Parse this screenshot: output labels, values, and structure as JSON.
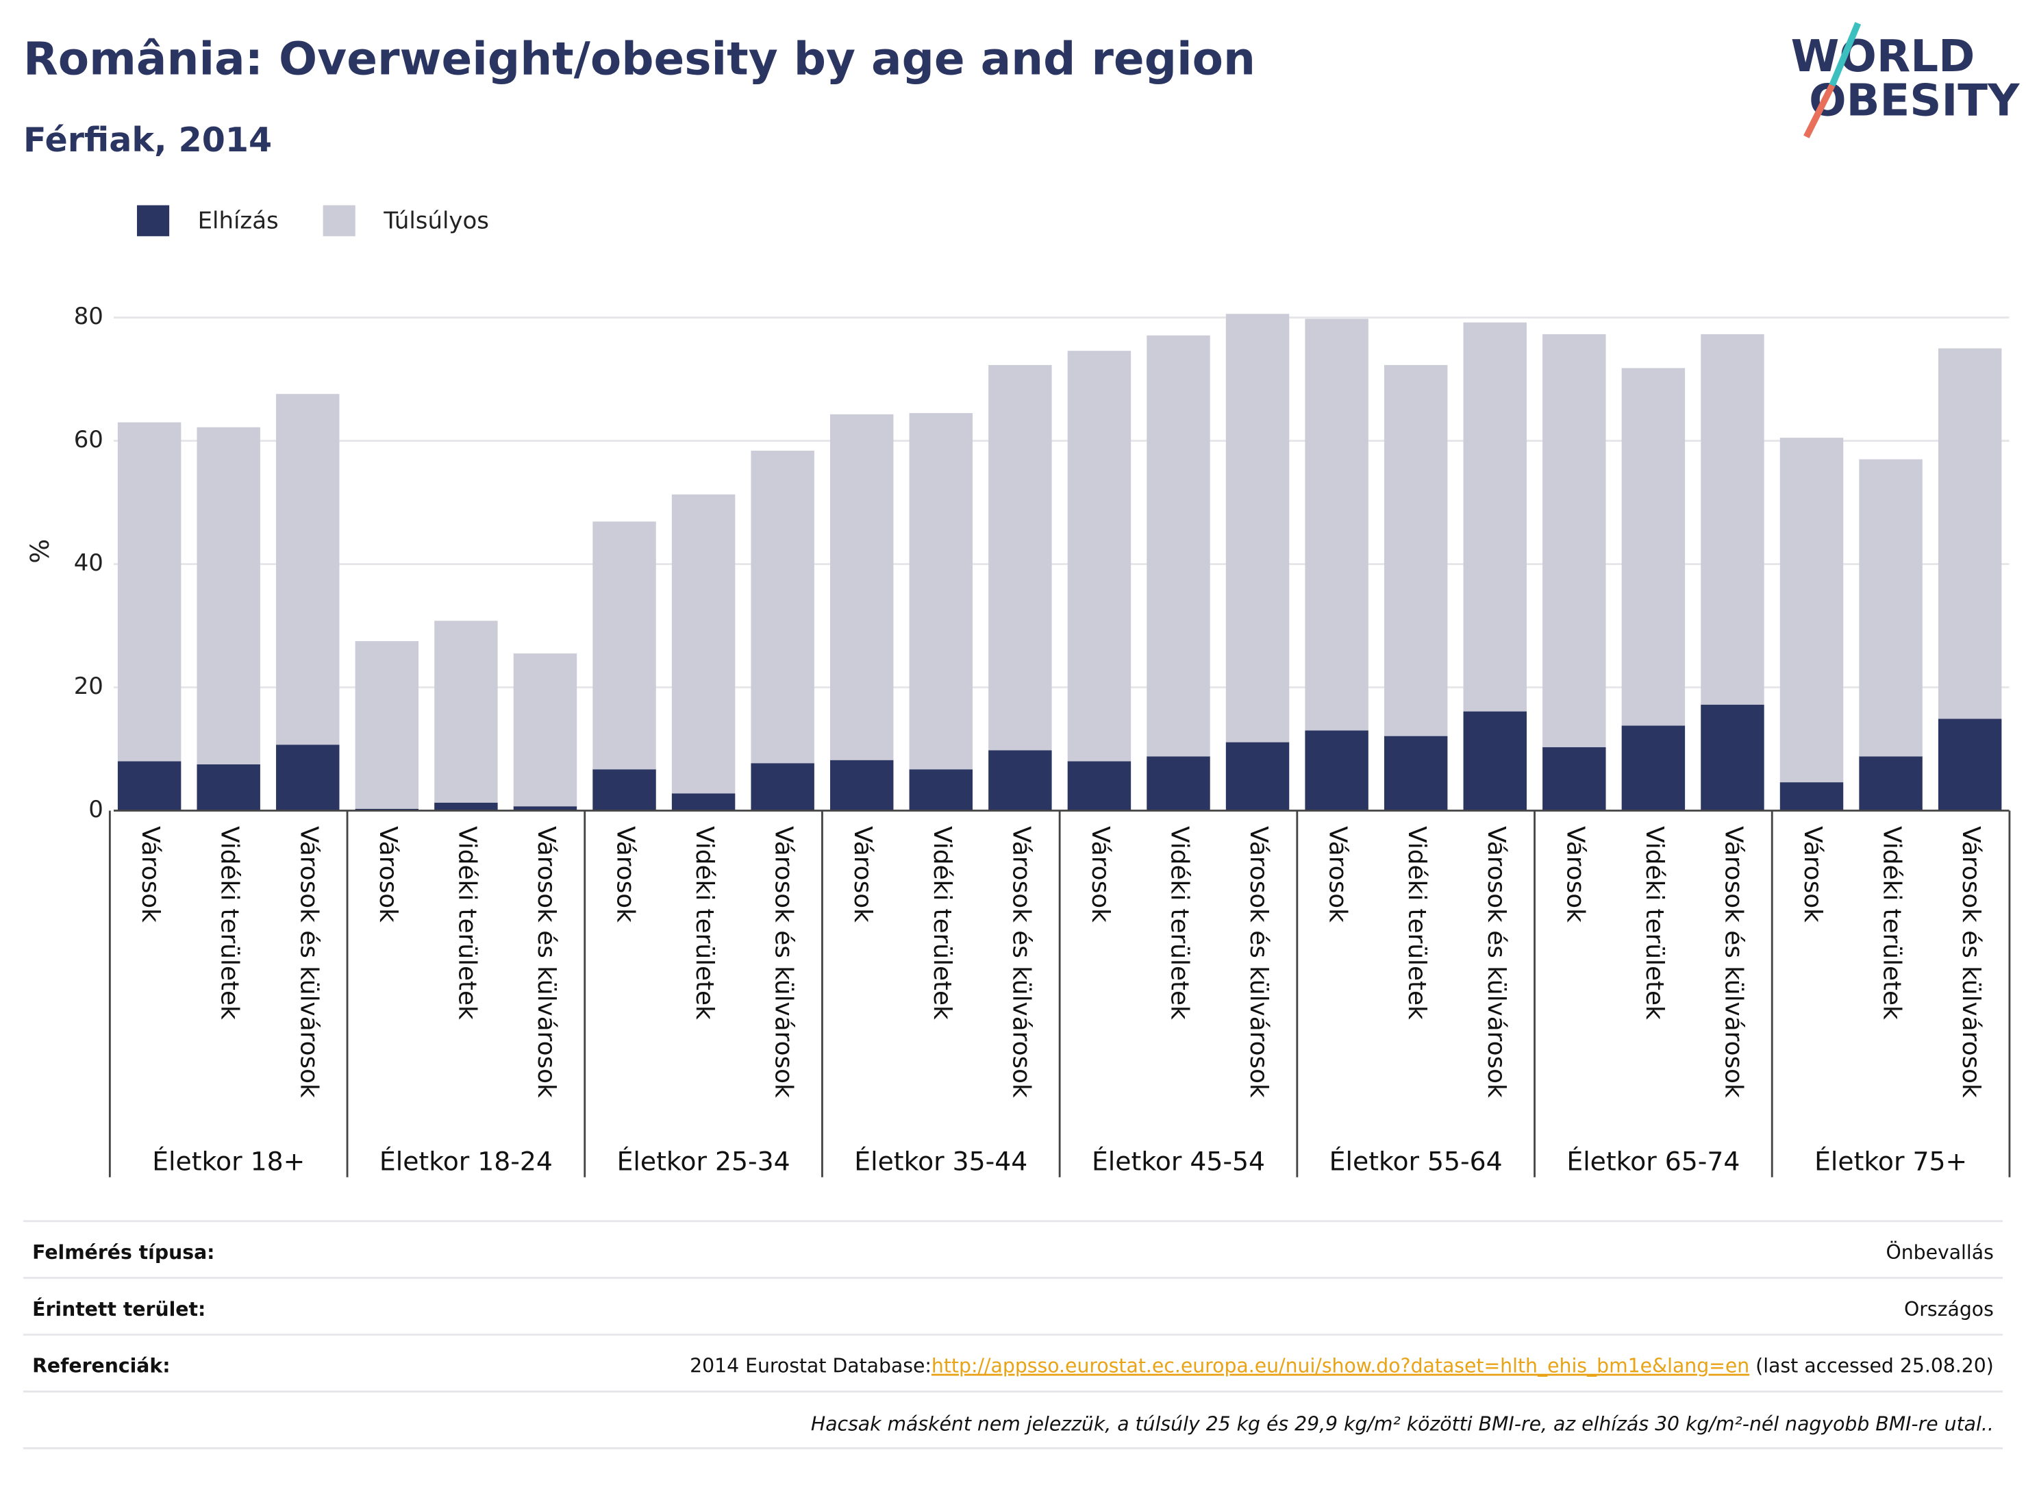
{
  "chart_data": {
    "type": "stacked_bar",
    "title": "România: Overweight/obesity by age and region",
    "subtitle": "Férfiak, 2014",
    "y_label": "%",
    "categories": [
      "Városok",
      "Vidéki területek",
      "Városok és külvárosok",
      "Városok",
      "Vidéki területek",
      "Városok és külvárosok",
      "Városok",
      "Vidéki területek",
      "Városok és külvárosok",
      "Városok",
      "Vidéki területek",
      "Városok és külvárosok",
      "Városok",
      "Vidéki területek",
      "Városok és külvárosok",
      "Városok",
      "Vidéki területek",
      "Városok és külvárosok",
      "Városok",
      "Vidéki területek",
      "Városok és külvárosok",
      "Városok",
      "Vidéki területek",
      "Városok és külvárosok"
    ],
    "groups": [
      "Életkor 18+",
      "Életkor 18-24",
      "Életkor 25-34",
      "Életkor 35-44",
      "Életkor 45-54",
      "Életkor 55-64",
      "Életkor 65-74",
      "Életkor 75+"
    ],
    "series": [
      {
        "name": "Elhízás",
        "color": "#2b3562",
        "values": [
          8.0,
          7.5,
          10.7,
          0.3,
          1.3,
          0.7,
          6.7,
          2.8,
          7.7,
          8.2,
          6.7,
          9.8,
          8.0,
          8.8,
          11.1,
          13.0,
          12.1,
          16.1,
          10.3,
          13.8,
          17.2,
          4.6,
          8.8,
          14.9
        ]
      },
      {
        "name": "Túlsúlyos",
        "color": "#cbccd8",
        "values": [
          55.0,
          54.7,
          56.9,
          27.2,
          29.5,
          24.8,
          40.2,
          48.5,
          50.7,
          56.1,
          57.8,
          62.5,
          66.6,
          68.3,
          69.5,
          66.8,
          60.2,
          63.1,
          67.0,
          58.0,
          60.1,
          55.9,
          48.2,
          60.1
        ]
      }
    ],
    "ylim": [
      0,
      80
    ],
    "yticks": [
      0,
      20,
      40,
      60,
      80
    ],
    "grid": true,
    "legend": "top-left"
  },
  "logo": [
    "WORLD",
    "OBESITY"
  ],
  "footer": {
    "rows": [
      {
        "label": "Felmérés típusa:",
        "value": "Önbevallás"
      },
      {
        "label": "Érintett terület:",
        "value": "Országos"
      },
      {
        "label": "Referenciák:",
        "value": {
          "prefix": "2014 Eurostat Database:",
          "link": "http://appsso.eurostat.ec.europa.eu/nui/show.do?dataset=hlth_ehis_bm1e&lang=en",
          "suffix": " (last accessed 25.08.20)"
        }
      }
    ],
    "note": "Hacsak másként nem jelezzük, a túlsúly 25 kg és 29,9 kg/m² közötti BMI-re, az elhízás 30 kg/m²-nél nagyobb BMI-re utal.."
  }
}
